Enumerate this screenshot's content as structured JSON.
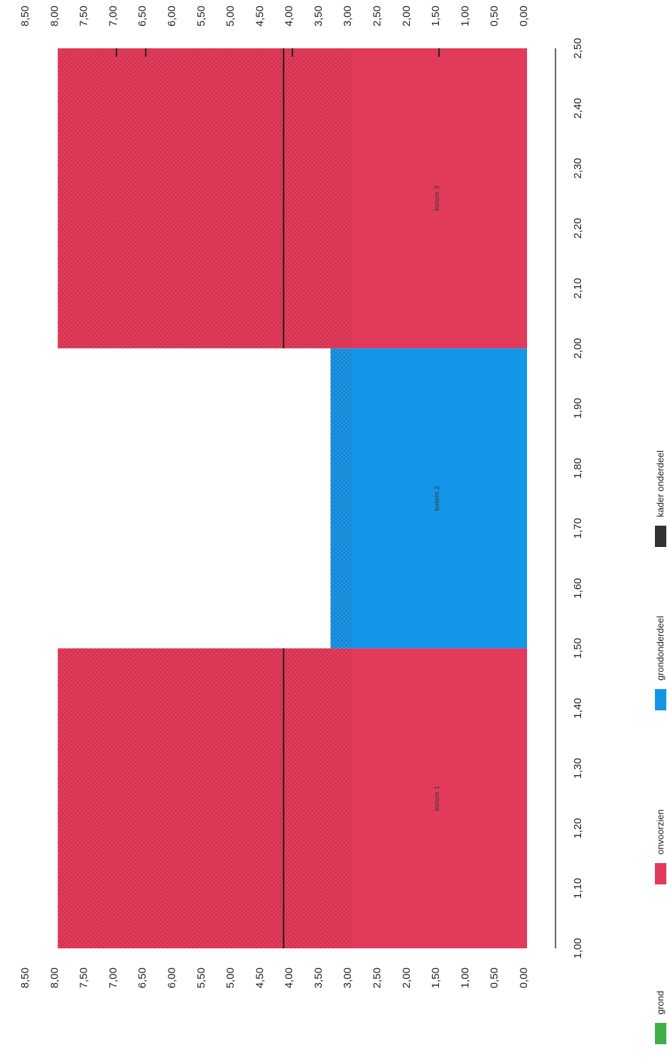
{
  "chart_data": {
    "type": "bar",
    "orientation": "rotated",
    "x_ticks": [
      "1,00",
      "1,10",
      "1,20",
      "1,30",
      "1,40",
      "1,50",
      "1,60",
      "1,70",
      "1,80",
      "1,90",
      "2,00",
      "2,10",
      "2,20",
      "2,30",
      "2,40",
      "2,50"
    ],
    "y_ticks_left": [
      "0,00",
      "0,50",
      "1,00",
      "1,50",
      "2,00",
      "2,50",
      "3,00",
      "3,50",
      "4,00",
      "4,50",
      "5,00",
      "5,50",
      "6,00",
      "6,50",
      "7,00",
      "7,50",
      "8,00",
      "8,50"
    ],
    "y_ticks_right": [
      "0,00",
      "0,50",
      "1,00",
      "1,50",
      "2,00",
      "2,50",
      "3,00",
      "3,50",
      "4,00",
      "4,50",
      "5,00",
      "5,50",
      "6,00",
      "6,50",
      "7,00",
      "7,50",
      "8,00",
      "8,50"
    ],
    "xlim": [
      1.0,
      2.5
    ],
    "ylim": [
      0,
      8.5
    ],
    "grid": false,
    "legend_position": "bottom",
    "legend": [
      {
        "label": "grond",
        "color": "#3fae49"
      },
      {
        "label": "onvoorzien",
        "color": "#e23a5a"
      },
      {
        "label": "grondonderdeel",
        "color": "#1496e8"
      },
      {
        "label": "kader onderdeel",
        "color": "#333333"
      }
    ],
    "blocks": [
      {
        "x0": 1.0,
        "x1": 1.5,
        "y0": 0,
        "y1": 8.0,
        "series": "onvoorzien",
        "color": "#e23a5a",
        "label": "kolom 1"
      },
      {
        "x0": 1.5,
        "x1": 2.0,
        "y0": 0,
        "y1": 3.35,
        "series": "grondonderdeel",
        "color": "#1496e8",
        "label": "kolom 2"
      },
      {
        "x0": 2.0,
        "x1": 2.5,
        "y0": 0,
        "y1": 8.0,
        "series": "onvoorzien",
        "color": "#e23a5a",
        "label": "kolom 3"
      }
    ],
    "hatch_from": 3.0,
    "kader_lines": [
      {
        "x0": 1.0,
        "x1": 1.5,
        "y": 4.15
      },
      {
        "x0": 2.0,
        "x1": 2.5,
        "y": 4.15
      }
    ],
    "tick_marks_right": [
      4.0,
      1.5,
      7.0,
      6.5
    ]
  }
}
